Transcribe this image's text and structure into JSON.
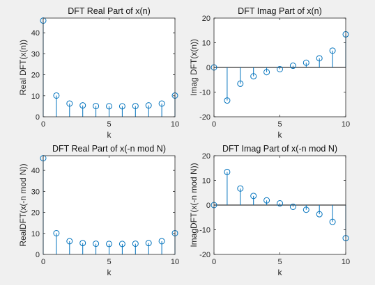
{
  "colors": {
    "series": "#0072BD"
  },
  "chart_data": [
    {
      "type": "stem",
      "title": "DFT Real Part of x(n)",
      "xlabel": "k",
      "ylabel": "Real  DFT(x(n))",
      "xlim": [
        0,
        10
      ],
      "ylim": [
        0,
        47
      ],
      "xticks": [
        0,
        5,
        10
      ],
      "yticks": [
        0,
        10,
        20,
        30,
        40
      ],
      "grid": false,
      "x": [
        0,
        1,
        2,
        3,
        4,
        5,
        6,
        7,
        8,
        9,
        10
      ],
      "values": [
        45.8,
        10.1,
        6.3,
        5.4,
        5.1,
        5.0,
        5.0,
        5.1,
        5.4,
        6.3,
        10.1
      ]
    },
    {
      "type": "stem",
      "title": "DFT Imag Part of x(n)",
      "xlabel": "k",
      "ylabel": "Imag  DFT(x(n))",
      "xlim": [
        0,
        10
      ],
      "ylim": [
        -20,
        20
      ],
      "xticks": [
        0,
        5,
        10
      ],
      "yticks": [
        -20,
        -10,
        0,
        10,
        20
      ],
      "grid": false,
      "x": [
        0,
        1,
        2,
        3,
        4,
        5,
        6,
        7,
        8,
        9,
        10
      ],
      "values": [
        0,
        -13.4,
        -6.6,
        -3.6,
        -1.9,
        -0.7,
        0.7,
        1.9,
        3.7,
        6.8,
        13.4
      ]
    },
    {
      "type": "stem",
      "title": "DFT Real Part of x(-n mod N)",
      "xlabel": "k",
      "ylabel": "RealDFT(x(-n mod N))",
      "xlim": [
        0,
        10
      ],
      "ylim": [
        0,
        47
      ],
      "xticks": [
        0,
        5,
        10
      ],
      "yticks": [
        0,
        10,
        20,
        30,
        40
      ],
      "grid": false,
      "x": [
        0,
        1,
        2,
        3,
        4,
        5,
        6,
        7,
        8,
        9,
        10
      ],
      "values": [
        45.8,
        10.1,
        6.3,
        5.4,
        5.1,
        5.0,
        5.0,
        5.1,
        5.4,
        6.3,
        10.1
      ]
    },
    {
      "type": "stem",
      "title": "DFT Imag Part of x(-n mod N)",
      "xlabel": "k",
      "ylabel": "ImagDFT(x(-n mod N))",
      "xlim": [
        0,
        10
      ],
      "ylim": [
        -20,
        20
      ],
      "xticks": [
        0,
        5,
        10
      ],
      "yticks": [
        -20,
        -10,
        0,
        10,
        20
      ],
      "grid": false,
      "x": [
        0,
        1,
        2,
        3,
        4,
        5,
        6,
        7,
        8,
        9,
        10
      ],
      "values": [
        0,
        13.4,
        6.7,
        3.7,
        1.9,
        0.7,
        -0.7,
        -1.9,
        -3.7,
        -6.8,
        -13.4
      ]
    }
  ]
}
